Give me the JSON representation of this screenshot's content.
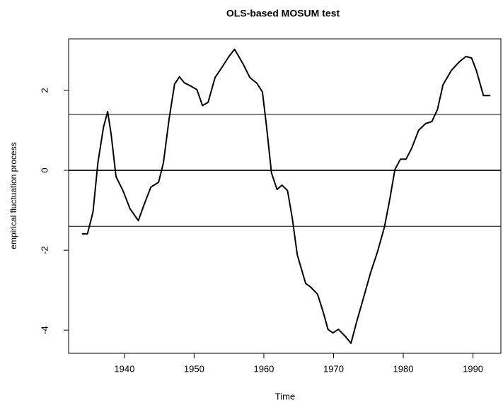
{
  "chart_data": {
    "type": "line",
    "title": "OLS-based MOSUM test",
    "x_label": "Time",
    "y_label": "empirical fluctuation process",
    "x": [
      1933.9,
      1934.7,
      1935.5,
      1936.2,
      1937.0,
      1937.6,
      1938.1,
      1938.8,
      1939.8,
      1940.8,
      1942.0,
      1942.8,
      1943.8,
      1944.9,
      1945.6,
      1946.4,
      1947.2,
      1947.9,
      1948.6,
      1949.4,
      1950.4,
      1951.2,
      1952.0,
      1953.0,
      1954.0,
      1955.0,
      1955.8,
      1957.0,
      1958.0,
      1959.0,
      1959.8,
      1960.4,
      1961.1,
      1961.9,
      1962.6,
      1963.4,
      1964.1,
      1964.8,
      1966.0,
      1966.7,
      1967.7,
      1968.5,
      1969.2,
      1969.9,
      1970.7,
      1971.7,
      1972.5,
      1973.3,
      1974.3,
      1975.3,
      1976.3,
      1977.3,
      1978.1,
      1978.8,
      1979.6,
      1980.4,
      1981.2,
      1982.2,
      1983.2,
      1984.1,
      1984.9,
      1985.7,
      1986.9,
      1988.0,
      1989.0,
      1989.8,
      1990.5,
      1991.5,
      1992.5
    ],
    "series": [
      {
        "name": "empirical fluctuation process",
        "color": "#000000",
        "values": [
          -1.59,
          -1.59,
          -1.04,
          0.19,
          1.08,
          1.47,
          0.9,
          -0.16,
          -0.51,
          -0.96,
          -1.26,
          -0.87,
          -0.42,
          -0.3,
          0.19,
          1.27,
          2.16,
          2.34,
          2.19,
          2.12,
          2.02,
          1.62,
          1.7,
          2.32,
          2.58,
          2.85,
          3.03,
          2.67,
          2.32,
          2.18,
          1.96,
          1.08,
          -0.07,
          -0.48,
          -0.37,
          -0.51,
          -1.22,
          -2.12,
          -2.83,
          -2.92,
          -3.1,
          -3.54,
          -3.98,
          -4.07,
          -3.98,
          -4.16,
          -4.33,
          -3.8,
          -3.19,
          -2.57,
          -2.04,
          -1.42,
          -0.69,
          0.02,
          0.28,
          0.28,
          0.55,
          1.0,
          1.17,
          1.22,
          1.52,
          2.14,
          2.5,
          2.71,
          2.85,
          2.81,
          2.49,
          1.87,
          1.87
        ]
      }
    ],
    "boundaries": [
      1.4,
      -1.4
    ],
    "zero_line": 0,
    "xlim": [
      1932,
      1994
    ],
    "xticks": [
      1940,
      1950,
      1960,
      1970,
      1980,
      1990
    ],
    "ylim": [
      -4.58,
      3.29
    ],
    "yticks": [
      -4,
      -2,
      0,
      2
    ]
  }
}
